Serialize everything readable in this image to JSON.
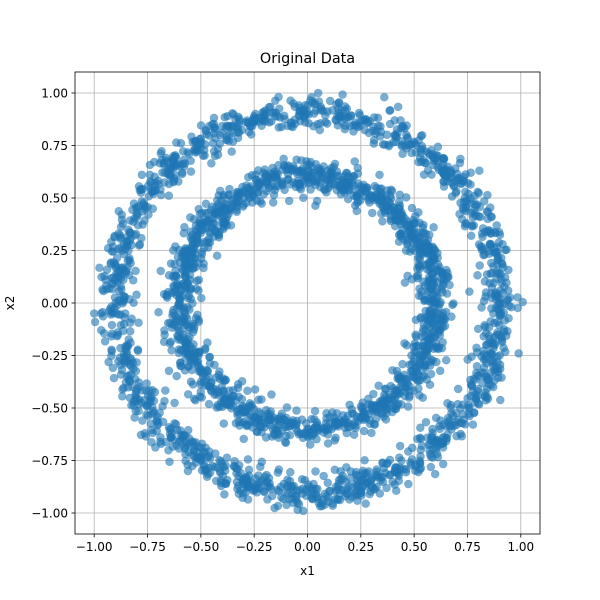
{
  "chart_data": {
    "type": "scatter",
    "title": "Original Data",
    "xlabel": "x1",
    "ylabel": "x2",
    "xlim": [
      -1.09,
      1.09
    ],
    "ylim": [
      -1.1,
      1.1
    ],
    "xticks": [
      -1.0,
      -0.75,
      -0.5,
      -0.25,
      0.0,
      0.25,
      0.5,
      0.75,
      1.0
    ],
    "xtick_labels": [
      "−1.00",
      "−0.75",
      "−0.50",
      "−0.25",
      "0.00",
      "0.25",
      "0.50",
      "0.75",
      "1.00"
    ],
    "yticks": [
      -1.0,
      -0.75,
      -0.5,
      -0.25,
      0.0,
      0.25,
      0.5,
      0.75,
      1.0
    ],
    "ytick_labels": [
      "−1.00",
      "−0.75",
      "−0.50",
      "−0.25",
      "0.00",
      "0.25",
      "0.50",
      "0.75",
      "1.00"
    ],
    "grid": true,
    "colors": {
      "points": "#1f77b4",
      "grid": "#b0b0b0",
      "axes": "#000000"
    },
    "point_alpha": 0.6,
    "series": [
      {
        "shape": "ring",
        "center": [
          0,
          0
        ],
        "mean_radius": 0.9,
        "radius_std": 0.04,
        "points": [
          [
            0.9,
            0.0
          ],
          [
            0.89,
            0.14
          ],
          [
            0.86,
            0.28
          ],
          [
            0.81,
            0.41
          ],
          [
            0.74,
            0.53
          ],
          [
            0.64,
            0.63
          ],
          [
            0.53,
            0.73
          ],
          [
            0.41,
            0.8
          ],
          [
            0.28,
            0.86
          ],
          [
            0.14,
            0.89
          ],
          [
            0.0,
            0.91
          ],
          [
            -0.14,
            0.89
          ],
          [
            -0.28,
            0.86
          ],
          [
            -0.41,
            0.8
          ],
          [
            -0.53,
            0.73
          ],
          [
            -0.64,
            0.64
          ],
          [
            -0.73,
            0.53
          ],
          [
            -0.8,
            0.41
          ],
          [
            -0.86,
            0.28
          ],
          [
            -0.89,
            0.14
          ],
          [
            -0.9,
            0.0
          ],
          [
            -0.89,
            -0.14
          ],
          [
            -0.86,
            -0.28
          ],
          [
            -0.8,
            -0.41
          ],
          [
            -0.73,
            -0.53
          ],
          [
            -0.64,
            -0.64
          ],
          [
            -0.53,
            -0.73
          ],
          [
            -0.41,
            -0.8
          ],
          [
            -0.28,
            -0.86
          ],
          [
            -0.14,
            -0.89
          ],
          [
            0.0,
            -0.9
          ],
          [
            0.14,
            -0.89
          ],
          [
            0.28,
            -0.86
          ],
          [
            0.41,
            -0.8
          ],
          [
            0.53,
            -0.73
          ],
          [
            0.64,
            -0.64
          ],
          [
            0.73,
            -0.53
          ],
          [
            0.8,
            -0.41
          ],
          [
            0.86,
            -0.28
          ],
          [
            0.89,
            -0.14
          ],
          [
            0.99,
            -0.24
          ],
          [
            0.36,
            0.98
          ],
          [
            -0.02,
            -0.99
          ],
          [
            -1.0,
            -0.05
          ],
          [
            0.05,
            1.0
          ]
        ]
      },
      {
        "shape": "ring",
        "center": [
          0,
          0
        ],
        "mean_radius": 0.6,
        "radius_std": 0.04,
        "points": [
          [
            0.6,
            0.0
          ],
          [
            0.59,
            0.09
          ],
          [
            0.57,
            0.19
          ],
          [
            0.53,
            0.27
          ],
          [
            0.49,
            0.35
          ],
          [
            0.42,
            0.42
          ],
          [
            0.35,
            0.49
          ],
          [
            0.27,
            0.53
          ],
          [
            0.19,
            0.57
          ],
          [
            0.09,
            0.59
          ],
          [
            0.0,
            0.61
          ],
          [
            -0.09,
            0.59
          ],
          [
            -0.19,
            0.57
          ],
          [
            -0.27,
            0.53
          ],
          [
            -0.35,
            0.49
          ],
          [
            -0.42,
            0.42
          ],
          [
            -0.49,
            0.35
          ],
          [
            -0.53,
            0.27
          ],
          [
            -0.57,
            0.19
          ],
          [
            -0.59,
            0.09
          ],
          [
            -0.6,
            0.0
          ],
          [
            -0.59,
            -0.09
          ],
          [
            -0.57,
            -0.19
          ],
          [
            -0.53,
            -0.27
          ],
          [
            -0.49,
            -0.35
          ],
          [
            -0.42,
            -0.42
          ],
          [
            -0.35,
            -0.49
          ],
          [
            -0.27,
            -0.53
          ],
          [
            -0.19,
            -0.57
          ],
          [
            -0.09,
            -0.59
          ],
          [
            0.0,
            -0.6
          ],
          [
            0.09,
            -0.59
          ],
          [
            0.19,
            -0.57
          ],
          [
            0.27,
            -0.53
          ],
          [
            0.35,
            -0.49
          ],
          [
            0.42,
            -0.42
          ],
          [
            0.49,
            -0.35
          ],
          [
            0.53,
            -0.27
          ],
          [
            0.57,
            -0.19
          ],
          [
            0.59,
            -0.09
          ]
        ]
      }
    ]
  }
}
